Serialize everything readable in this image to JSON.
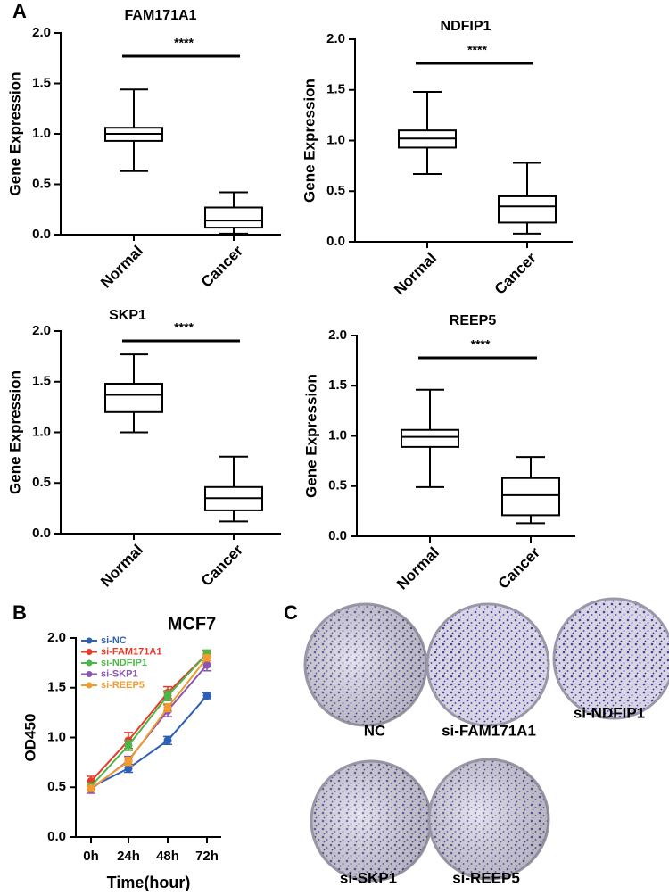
{
  "panel_labels": [
    "A",
    "B",
    "C"
  ],
  "chart_data": [
    {
      "type": "box",
      "title": "FAM171A1",
      "y_label": "Gene Expression",
      "annotation": "****",
      "categories": [
        "Normal",
        "Cancer"
      ],
      "stats": {
        "min": [
          0.63,
          0.01
        ],
        "q1": [
          0.93,
          0.07
        ],
        "median": [
          1.0,
          0.14
        ],
        "q3": [
          1.06,
          0.27
        ],
        "max": [
          1.44,
          0.42
        ]
      },
      "color": "#000000",
      "ylim": [
        0,
        2
      ],
      "yticks": [
        {
          "value": 0,
          "label": "0.0"
        },
        0.5,
        {
          "value": 1,
          "label": "1.0"
        },
        1.5,
        {
          "value": 2,
          "label": "2.0"
        }
      ]
    },
    {
      "type": "box",
      "title": "NDFIP1",
      "y_label": "Gene Expression",
      "annotation": "****",
      "categories": [
        "Normal",
        "Cancer"
      ],
      "stats": {
        "min": [
          0.67,
          0.08
        ],
        "q1": [
          0.93,
          0.19
        ],
        "median": [
          1.02,
          0.35
        ],
        "q3": [
          1.1,
          0.45
        ],
        "max": [
          1.48,
          0.78
        ]
      },
      "color": "#000000",
      "ylim": [
        0,
        2
      ],
      "yticks": [
        {
          "value": 0,
          "label": "0.0"
        },
        0.5,
        {
          "value": 1,
          "label": "1.0"
        },
        1.5,
        {
          "value": 2,
          "label": "2.0"
        }
      ]
    },
    {
      "type": "box",
      "title": "SKP1",
      "y_label": "Gene Expression",
      "annotation": "****",
      "categories": [
        "Normal",
        "Cancer"
      ],
      "stats": {
        "min": [
          1.0,
          0.12
        ],
        "q1": [
          1.2,
          0.23
        ],
        "median": [
          1.37,
          0.35
        ],
        "q3": [
          1.48,
          0.46
        ],
        "max": [
          1.77,
          0.76
        ]
      },
      "color": "#000000",
      "ylim": [
        0,
        2
      ],
      "yticks": [
        {
          "value": 0,
          "label": "0.0"
        },
        0.5,
        {
          "value": 1,
          "label": "1.0"
        },
        1.5,
        {
          "value": 2,
          "label": "2.0"
        }
      ]
    },
    {
      "type": "box",
      "title": "REEP5",
      "y_label": "Gene Expression",
      "annotation": "****",
      "categories": [
        "Normal",
        "Cancer"
      ],
      "stats": {
        "min": [
          0.49,
          0.13
        ],
        "q1": [
          0.89,
          0.21
        ],
        "median": [
          0.99,
          0.41
        ],
        "q3": [
          1.06,
          0.58
        ],
        "max": [
          1.46,
          0.79
        ]
      },
      "color": "#000000",
      "ylim": [
        0,
        2
      ],
      "yticks": [
        {
          "value": 0,
          "label": "0.0"
        },
        0.5,
        {
          "value": 1,
          "label": "1.0"
        },
        1.5,
        {
          "value": 2,
          "label": "2.0"
        }
      ]
    },
    {
      "type": "line",
      "title": "MCF7",
      "x_label": "Time(hour)",
      "y_label": "OD450",
      "categories": [
        "0h",
        "24h",
        "48h",
        "72h"
      ],
      "series": [
        {
          "name": "si-NC",
          "color": "#2d5fb5",
          "values": [
            0.5,
            0.69,
            0.97,
            1.42
          ],
          "errors": [
            0.04,
            0.04,
            0.04,
            0.03
          ]
        },
        {
          "name": "si-FAM171A1",
          "color": "#e8392a",
          "values": [
            0.56,
            0.97,
            1.45,
            1.84
          ],
          "errors": [
            0.05,
            0.08,
            0.06,
            0.03
          ]
        },
        {
          "name": "si-NDFIP1",
          "color": "#4cb648",
          "values": [
            0.51,
            0.92,
            1.42,
            1.84
          ],
          "errors": [
            0.03,
            0.05,
            0.05,
            0.04
          ]
        },
        {
          "name": "si-SKP1",
          "color": "#8a56b0",
          "values": [
            0.48,
            0.77,
            1.27,
            1.73
          ],
          "errors": [
            0.04,
            0.04,
            0.06,
            0.06
          ]
        },
        {
          "name": "si-REEP5",
          "color": "#f39b2b",
          "values": [
            0.49,
            0.76,
            1.3,
            1.8
          ],
          "errors": [
            0.03,
            0.04,
            0.04,
            0.03
          ]
        }
      ],
      "ylim": [
        0,
        2
      ],
      "yticks": [
        {
          "value": 0,
          "label": "0.0"
        },
        0.5,
        {
          "value": 1,
          "label": "1.0"
        },
        1.5,
        {
          "value": 2,
          "label": "2.0"
        }
      ],
      "legend": "upper-left"
    }
  ],
  "colony_images": {
    "labels": [
      "NC",
      "si-FAM171A1",
      "si-NDFIP1",
      "si-SKP1",
      "si-REEP5"
    ]
  }
}
